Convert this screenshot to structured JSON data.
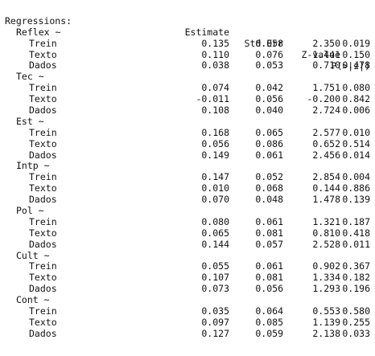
{
  "title": "Regressions:",
  "columns": [
    "Estimate",
    "Std.Err",
    "Z-value",
    "P(>|z|)"
  ],
  "groups": [
    {
      "label": "Reflex ~",
      "rows": [
        {
          "name": "Trein",
          "values": [
            "0.135",
            "0.058",
            "2.350",
            "0.019"
          ]
        },
        {
          "name": "Texto",
          "values": [
            "0.110",
            "0.076",
            "1.441",
            "0.150"
          ]
        },
        {
          "name": "Dados",
          "values": [
            "0.038",
            "0.053",
            "0.710",
            "0.478"
          ]
        }
      ]
    },
    {
      "label": "Tec ~",
      "rows": [
        {
          "name": "Trein",
          "values": [
            "0.074",
            "0.042",
            "1.751",
            "0.080"
          ]
        },
        {
          "name": "Texto",
          "values": [
            "-0.011",
            "0.056",
            "-0.200",
            "0.842"
          ]
        },
        {
          "name": "Dados",
          "values": [
            "0.108",
            "0.040",
            "2.724",
            "0.006"
          ]
        }
      ]
    },
    {
      "label": "Est ~",
      "rows": [
        {
          "name": "Trein",
          "values": [
            "0.168",
            "0.065",
            "2.577",
            "0.010"
          ]
        },
        {
          "name": "Texto",
          "values": [
            "0.056",
            "0.086",
            "0.652",
            "0.514"
          ]
        },
        {
          "name": "Dados",
          "values": [
            "0.149",
            "0.061",
            "2.456",
            "0.014"
          ]
        }
      ]
    },
    {
      "label": "Intp ~",
      "rows": [
        {
          "name": "Trein",
          "values": [
            "0.147",
            "0.052",
            "2.854",
            "0.004"
          ]
        },
        {
          "name": "Texto",
          "values": [
            "0.010",
            "0.068",
            "0.144",
            "0.886"
          ]
        },
        {
          "name": "Dados",
          "values": [
            "0.070",
            "0.048",
            "1.478",
            "0.139"
          ]
        }
      ]
    },
    {
      "label": "Pol ~",
      "rows": [
        {
          "name": "Trein",
          "values": [
            "0.080",
            "0.061",
            "1.321",
            "0.187"
          ]
        },
        {
          "name": "Texto",
          "values": [
            "0.065",
            "0.081",
            "0.810",
            "0.418"
          ]
        },
        {
          "name": "Dados",
          "values": [
            "0.144",
            "0.057",
            "2.528",
            "0.011"
          ]
        }
      ]
    },
    {
      "label": "Cult ~",
      "rows": [
        {
          "name": "Trein",
          "values": [
            "0.055",
            "0.061",
            "0.902",
            "0.367"
          ]
        },
        {
          "name": "Texto",
          "values": [
            "0.107",
            "0.081",
            "1.334",
            "0.182"
          ]
        },
        {
          "name": "Dados",
          "values": [
            "0.073",
            "0.056",
            "1.293",
            "0.196"
          ]
        }
      ]
    },
    {
      "label": "Cont ~",
      "rows": [
        {
          "name": "Trein",
          "values": [
            "0.035",
            "0.064",
            "0.553",
            "0.580"
          ]
        },
        {
          "name": "Texto",
          "values": [
            "0.097",
            "0.085",
            "1.139",
            "0.255"
          ]
        },
        {
          "name": "Dados",
          "values": [
            "0.127",
            "0.059",
            "2.138",
            "0.033"
          ]
        }
      ]
    }
  ]
}
